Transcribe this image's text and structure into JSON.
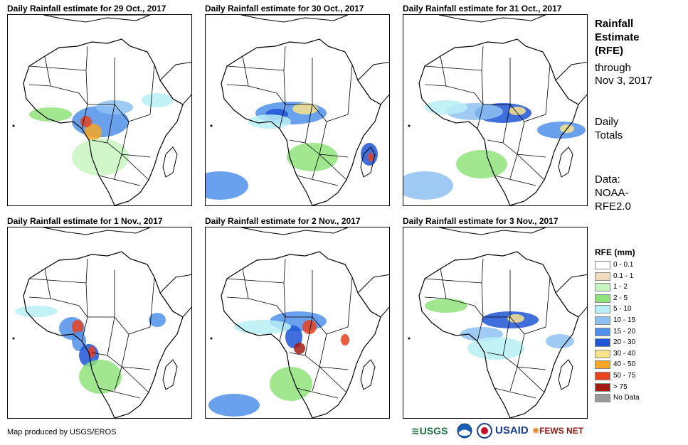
{
  "panels": [
    {
      "title": "Daily Rainfall estimate for 29 Oct., 2017"
    },
    {
      "title": "Daily Rainfall estimate for 30 Oct., 2017"
    },
    {
      "title": "Daily Rainfall estimate for 31 Oct., 2017"
    },
    {
      "title": "Daily Rainfall estimate for 1 Nov., 2017"
    },
    {
      "title": "Daily Rainfall estimate for 2 Nov., 2017"
    },
    {
      "title": "Daily Rainfall estimate for 3 Nov., 2017"
    }
  ],
  "side": {
    "line1": "Rainfall",
    "line2": "Estimate",
    "line3": "(RFE)",
    "line4": "through",
    "line5": "Nov 3, 2017",
    "daily1": "Daily",
    "daily2": "Totals",
    "data1": "Data:",
    "data2": "NOAA-",
    "data3": "RFE2.0"
  },
  "legend": {
    "title": "RFE (mm)",
    "items": [
      {
        "label": "0 - 0.1",
        "color": "#ffffff"
      },
      {
        "label": "0.1 - 1",
        "color": "#f0dcbc"
      },
      {
        "label": "1 - 2",
        "color": "#c8f5bf"
      },
      {
        "label": "2 - 5",
        "color": "#8fe37c"
      },
      {
        "label": "5 - 10",
        "color": "#b7eef5"
      },
      {
        "label": "10 - 15",
        "color": "#8ec1f2"
      },
      {
        "label": "15 - 20",
        "color": "#4f90ea"
      },
      {
        "label": "20 - 30",
        "color": "#1f56d6"
      },
      {
        "label": "30 - 40",
        "color": "#f8e38c"
      },
      {
        "label": "40 - 50",
        "color": "#f5a623"
      },
      {
        "label": "50 - 75",
        "color": "#e8411d"
      },
      {
        "label": "> 75",
        "color": "#a11d14"
      },
      {
        "label": "No Data",
        "color": "#9a9a9a"
      }
    ]
  },
  "credit": "Map produced by USGS/EROS",
  "logos": {
    "usgs": "USGS",
    "noaa": "NOAA",
    "usaid": "USAID",
    "fewsnet": "FEWS NET"
  }
}
